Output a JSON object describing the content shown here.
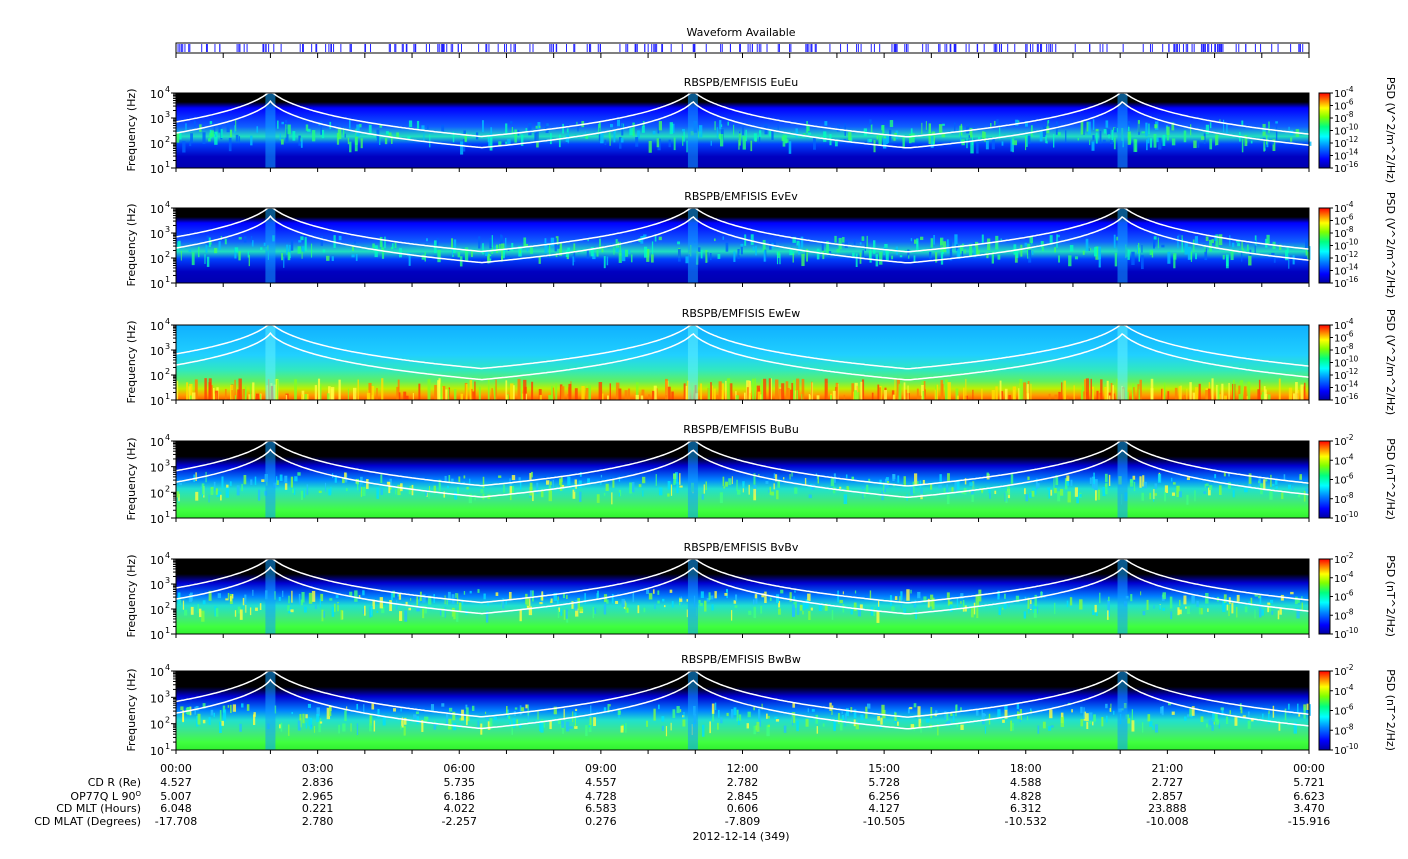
{
  "waveform": {
    "title": "Waveform Available",
    "color": "#2020ff"
  },
  "colors": {
    "background_dark": "#000000",
    "curve": "#ffffff",
    "e_field_scale": [
      "#0000a0",
      "#0000ff",
      "#0080ff",
      "#00ffff",
      "#00ff80",
      "#80ff00",
      "#ffff00",
      "#ff8000",
      "#ff0000"
    ]
  },
  "chart_data": [
    {
      "type": "heatmap",
      "title": "RBSPB/EMFISIS  EuEu",
      "ylabel": "Frequency (Hz)",
      "ylim": [
        10,
        10000
      ],
      "yscale": "log",
      "y_ticks": [
        "10",
        "10",
        "10",
        "10"
      ],
      "y_tick_exponents": [
        "1",
        "2",
        "3",
        "4"
      ],
      "colorbar_label": "PSD (V^2/m^2/Hz)",
      "colorbar_ticks": [
        "10",
        "10",
        "10",
        "10",
        "10",
        "10",
        "10"
      ],
      "colorbar_exponents": [
        "-4",
        "-6",
        "-8",
        "-10",
        "-12",
        "-14",
        "-16"
      ],
      "style": "E"
    },
    {
      "type": "heatmap",
      "title": "RBSPB/EMFISIS  EvEv",
      "ylabel": "Frequency (Hz)",
      "ylim": [
        10,
        10000
      ],
      "yscale": "log",
      "y_ticks": [
        "10",
        "10",
        "10",
        "10"
      ],
      "y_tick_exponents": [
        "1",
        "2",
        "3",
        "4"
      ],
      "colorbar_label": "PSD (V^2/m^2/Hz)",
      "colorbar_ticks": [
        "10",
        "10",
        "10",
        "10",
        "10",
        "10",
        "10"
      ],
      "colorbar_exponents": [
        "-4",
        "-6",
        "-8",
        "-10",
        "-12",
        "-14",
        "-16"
      ],
      "style": "E"
    },
    {
      "type": "heatmap",
      "title": "RBSPB/EMFISIS  EwEw",
      "ylabel": "Frequency (Hz)",
      "ylim": [
        10,
        10000
      ],
      "yscale": "log",
      "y_ticks": [
        "10",
        "10",
        "10",
        "10"
      ],
      "y_tick_exponents": [
        "1",
        "2",
        "3",
        "4"
      ],
      "colorbar_label": "PSD (V^2/m^2/Hz)",
      "colorbar_ticks": [
        "10",
        "10",
        "10",
        "10",
        "10",
        "10",
        "10"
      ],
      "colorbar_exponents": [
        "-4",
        "-6",
        "-8",
        "-10",
        "-12",
        "-14",
        "-16"
      ],
      "style": "Ew"
    },
    {
      "type": "heatmap",
      "title": "RBSPB/EMFISIS  BuBu",
      "ylabel": "Frequency (Hz)",
      "ylim": [
        10,
        10000
      ],
      "yscale": "log",
      "y_ticks": [
        "10",
        "10",
        "10",
        "10"
      ],
      "y_tick_exponents": [
        "1",
        "2",
        "3",
        "4"
      ],
      "colorbar_label": "PSD (nT^2/Hz)",
      "colorbar_ticks": [
        "10",
        "10",
        "10",
        "10",
        "10"
      ],
      "colorbar_exponents": [
        "-2",
        "-4",
        "-6",
        "-8",
        "-10"
      ],
      "style": "B"
    },
    {
      "type": "heatmap",
      "title": "RBSPB/EMFISIS  BvBv",
      "ylabel": "Frequency (Hz)",
      "ylim": [
        10,
        10000
      ],
      "yscale": "log",
      "y_ticks": [
        "10",
        "10",
        "10",
        "10"
      ],
      "y_tick_exponents": [
        "1",
        "2",
        "3",
        "4"
      ],
      "colorbar_label": "PSD (nT^2/Hz)",
      "colorbar_ticks": [
        "10",
        "10",
        "10",
        "10",
        "10"
      ],
      "colorbar_exponents": [
        "-2",
        "-4",
        "-6",
        "-8",
        "-10"
      ],
      "style": "B"
    },
    {
      "type": "heatmap",
      "title": "RBSPB/EMFISIS  BwBw",
      "ylabel": "Frequency (Hz)",
      "ylim": [
        10,
        10000
      ],
      "yscale": "log",
      "y_ticks": [
        "10",
        "10",
        "10",
        "10"
      ],
      "y_tick_exponents": [
        "1",
        "2",
        "3",
        "4"
      ],
      "colorbar_label": "PSD (nT^2/Hz)",
      "colorbar_ticks": [
        "10",
        "10",
        "10",
        "10",
        "10"
      ],
      "colorbar_exponents": [
        "-2",
        "-4",
        "-6",
        "-8",
        "-10"
      ],
      "style": "B"
    }
  ],
  "x_axis": {
    "ticks": [
      "00:00",
      "03:00",
      "06:00",
      "09:00",
      "12:00",
      "15:00",
      "18:00",
      "21:00",
      "00:00"
    ],
    "date_label": "2012-12-14 (349)",
    "rows": [
      {
        "label": "CD R (Re)",
        "values": [
          "4.527",
          "2.836",
          "5.735",
          "4.557",
          "2.782",
          "5.728",
          "4.588",
          "2.727",
          "5.721"
        ]
      },
      {
        "label": "OP77Q L 90",
        "label_sup": "O",
        "values": [
          "5.007",
          "2.965",
          "6.186",
          "4.728",
          "2.845",
          "6.256",
          "4.828",
          "2.857",
          "6.623"
        ]
      },
      {
        "label": "CD MLT (Hours)",
        "values": [
          "6.048",
          "0.221",
          "4.022",
          "6.583",
          "0.606",
          "4.127",
          "6.312",
          "23.888",
          "3.470"
        ]
      },
      {
        "label": "CD MLAT (Degrees)",
        "values": [
          "-17.708",
          "2.780",
          "-2.257",
          "0.276",
          "-7.809",
          "-10.505",
          "-10.532",
          "-10.008",
          "-15.916"
        ]
      }
    ]
  }
}
